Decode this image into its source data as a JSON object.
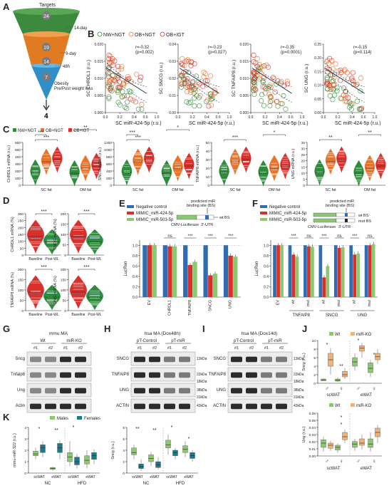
{
  "panel_letters": [
    "A",
    "B",
    "C",
    "D",
    "E",
    "F",
    "G",
    "H",
    "I",
    "J",
    "K"
  ],
  "colors": {
    "green": "#2e8b3c",
    "orange": "#e8732a",
    "red": "#d9302b",
    "blue": "#2f6db3",
    "teal": "#1e7a8a",
    "lgreen": "#8cc870",
    "lorange": "#f0b27a",
    "cone_green": "#3b8a3e",
    "cone_orange": "#e07b22",
    "cone_blue": "#2f8fc6"
  },
  "panelA": {
    "title": "Targets",
    "numbers": [
      "24",
      "19",
      "14",
      "7",
      "4"
    ],
    "labels": [
      "14-day",
      "9-day",
      "48h",
      "Obesity",
      "Pre/Post weight loss"
    ]
  },
  "legendB": [
    "NW+NGT",
    "OB+NGT",
    "OB+IGT"
  ],
  "panelB": [
    {
      "ylabel": "SC CHRDL1 (r.u.)",
      "r": "r=-0.32",
      "p": "(p=0.002)",
      "yticks": [
        "0.000",
        "0.005",
        "0.010",
        "0.015",
        "0.020"
      ],
      "xticks": [
        "0.0",
        "0.2",
        "0.4",
        "0.6",
        "1.0"
      ]
    },
    {
      "ylabel": "SC SNCG (r.u.)",
      "r": "r=-0.23",
      "p": "(p=0.027)",
      "yticks": [
        "0.00",
        "0.01",
        "0.02",
        "0.03",
        "0.04"
      ],
      "xticks": [
        "0.0",
        "0.2",
        "0.4",
        "0.6",
        "1.0"
      ]
    },
    {
      "ylabel": "SC TNFAIP8 (r.u.)",
      "r": "r=-0.35",
      "p": "(p=0.0001)",
      "yticks": [
        "0.000",
        "0.005",
        "0.010",
        "0.015",
        "0.020"
      ],
      "xticks": [
        "0.0",
        "0.2",
        "0.4",
        "0.6",
        "1.0"
      ]
    },
    {
      "ylabel": "SC UNG (r.u.)",
      "r": "r=-0.15",
      "p": "(p=0.114)",
      "yticks": [
        "0.00",
        "0.05",
        "0.10",
        "0.15",
        "0.20",
        "0.25"
      ],
      "xticks": [
        "0.0",
        "0.2",
        "0.4",
        "0.6",
        "1.0"
      ]
    }
  ],
  "panelB_xlabel": "SC miR-424-5p (r.u.)",
  "panelC": {
    "legend": [
      "NW+NGT",
      "OB+NGT",
      "OB+IGT"
    ],
    "groups": [
      "SC fat",
      "OM fat"
    ],
    "plots": [
      {
        "ylabel": "CHRDL1 mRNA (r.u.)",
        "yticks": [
          "0",
          "100",
          "200",
          "300",
          "400",
          "500",
          "600"
        ],
        "stars": [
          "***",
          "***",
          "**"
        ]
      },
      {
        "ylabel": "SNCG mRNA (r.u.)",
        "yticks": [
          "0",
          "200",
          "400",
          "600",
          "800",
          "1000",
          "1200"
        ],
        "stars": [
          "***",
          "***",
          "*"
        ]
      },
      {
        "ylabel": "TNFAIP8 mRNA (r.u.)",
        "yticks": [
          "0",
          "10",
          "20",
          "30",
          "40",
          "50"
        ],
        "stars": [
          "***",
          "*"
        ]
      },
      {
        "ylabel": "UNG mRNA (r.u.)",
        "yticks": [
          "0",
          "5",
          "10",
          "15",
          "20",
          "25",
          "30",
          "35"
        ],
        "stars": [
          "**",
          "**"
        ]
      }
    ]
  },
  "panelD": {
    "plots": [
      {
        "ylabel": "CHRDL1 mRNA (%)",
        "yticks": [
          "0",
          "50",
          "100",
          "150",
          "200",
          "250",
          "300"
        ],
        "star": "***"
      },
      {
        "ylabel": "SNCG mRNA (%)",
        "yticks": [
          "0",
          "50",
          "100",
          "150",
          "200"
        ],
        "star": "***"
      },
      {
        "ylabel": "TNFAIP8 mRNA (%)",
        "yticks": [
          "0",
          "50",
          "100",
          "150",
          "200"
        ],
        "star": "***"
      },
      {
        "ylabel": "UNG mRNA (%)",
        "yticks": [
          "0",
          "50",
          "100",
          "150",
          "200"
        ],
        "star": "***"
      }
    ],
    "xlabels": [
      "Baseline",
      "Post-WL"
    ]
  },
  "panelE": {
    "legend": [
      "Negative control",
      "MIMIC_miR-424-5p",
      "MIMIC_miR-503-5p"
    ],
    "construct": {
      "bs_label": "predicted miR binding site (BS)",
      "promoter": "CMV-Luciferase",
      "utr": "3'-UTR",
      "wt": "wt BS"
    },
    "ylabel": "LucRen",
    "yticks": [
      "0.0",
      "0.2",
      "0.4",
      "0.6",
      "0.8",
      "1.0"
    ],
    "categories": [
      "EV",
      "CHRDL1",
      "TNFAIP8",
      "SNCG",
      "UNG"
    ],
    "sig": [
      "ns",
      "***",
      "***",
      "***"
    ]
  },
  "panelF": {
    "legend": [
      "Negative control",
      "MIMIC_miR-424-5p",
      "MIMIC_miR-503-5p"
    ],
    "construct": {
      "bs_label": "predicted miR binding site (BS)",
      "promoter": "CMV-Luciferase",
      "utr": "3'-UTR",
      "wt": "wt BS",
      "mut": "mut BS"
    },
    "ylabel": "LucRen",
    "yticks": [
      "0.0",
      "0.2",
      "0.4",
      "0.6",
      "0.8",
      "1.0"
    ],
    "categories": [
      "EV",
      "wt",
      "mut",
      "wt",
      "mut",
      "wt",
      "mut"
    ],
    "genes": [
      "TNFAIP8",
      "SNCG",
      "UNG"
    ],
    "sig": [
      "***",
      "ns",
      "***",
      "ns",
      "***",
      "ns"
    ]
  },
  "panelG": {
    "title": "mmu MA",
    "groups": [
      "Wt",
      "miR-KO"
    ],
    "lanes": [
      "#1",
      "#2",
      "#1",
      "#2"
    ],
    "rows": [
      "Sncg",
      "Tnfaip8",
      "Ung",
      "Actin"
    ]
  },
  "panelH": {
    "title": "hsa MA (Dox48h)",
    "groups": [
      "pT-Control",
      "pT-miR"
    ],
    "lanes": [
      "#1",
      "#2",
      "#1",
      "#2"
    ],
    "rows": [
      "SNCG",
      "TNFAIP8",
      "UNG",
      "ACTIN"
    ],
    "kda": [
      "13kDa",
      "22kDa",
      "18kDa",
      "38kDa",
      "31kDa",
      "43kDa"
    ]
  },
  "panelI": {
    "title": "hsa MA (Dox14d)",
    "groups": [
      "pT-Control",
      "pT-miR"
    ],
    "lanes": [
      "#1",
      "#2",
      "#1",
      "#2"
    ],
    "rows": [
      "SNCG",
      "TNFAIP8",
      "UNG",
      "ACTIN"
    ],
    "kda": [
      "13kDa",
      "22kDa",
      "18kDa",
      "38kDa",
      "31kDa",
      "43kDa"
    ]
  },
  "panelJ": {
    "legend": [
      "Wt",
      "miR-KO"
    ],
    "top": {
      "ylabel": "Sncg (r.u.)",
      "yticks": [
        "0",
        "2",
        "4",
        "6",
        "8",
        "10"
      ],
      "stars": [
        "*",
        "**",
        "*",
        "*"
      ]
    },
    "bottom": {
      "ylabel": "Ung (r.u.)",
      "yticks": [
        "0.00",
        "0.01",
        "0.02",
        "0.03",
        "0.04",
        "0.05",
        "0.06"
      ],
      "stars": [
        "*",
        "*"
      ]
    },
    "groups": [
      "scWAT",
      "eWAT"
    ],
    "sex": [
      "♂",
      "♀",
      "♂",
      "♀"
    ]
  },
  "panelK": {
    "legend": [
      "Males",
      "Females"
    ],
    "left": {
      "ylabel": "mmu-miR-322 (r.u.)",
      "yticks": [
        "0",
        "1",
        "2",
        "3",
        "4"
      ],
      "stars": [
        "*",
        "**",
        "*"
      ]
    },
    "right": {
      "ylabel": "Sncg (r.u.)",
      "yticks": [
        "0",
        "2",
        "4",
        "6",
        "8"
      ],
      "stars": [
        "**",
        "**",
        "*",
        "*"
      ]
    },
    "sub": [
      "scWAT",
      "eWAT",
      "scWAT",
      "eWAT"
    ],
    "diet": [
      "NC",
      "HFD"
    ]
  }
}
